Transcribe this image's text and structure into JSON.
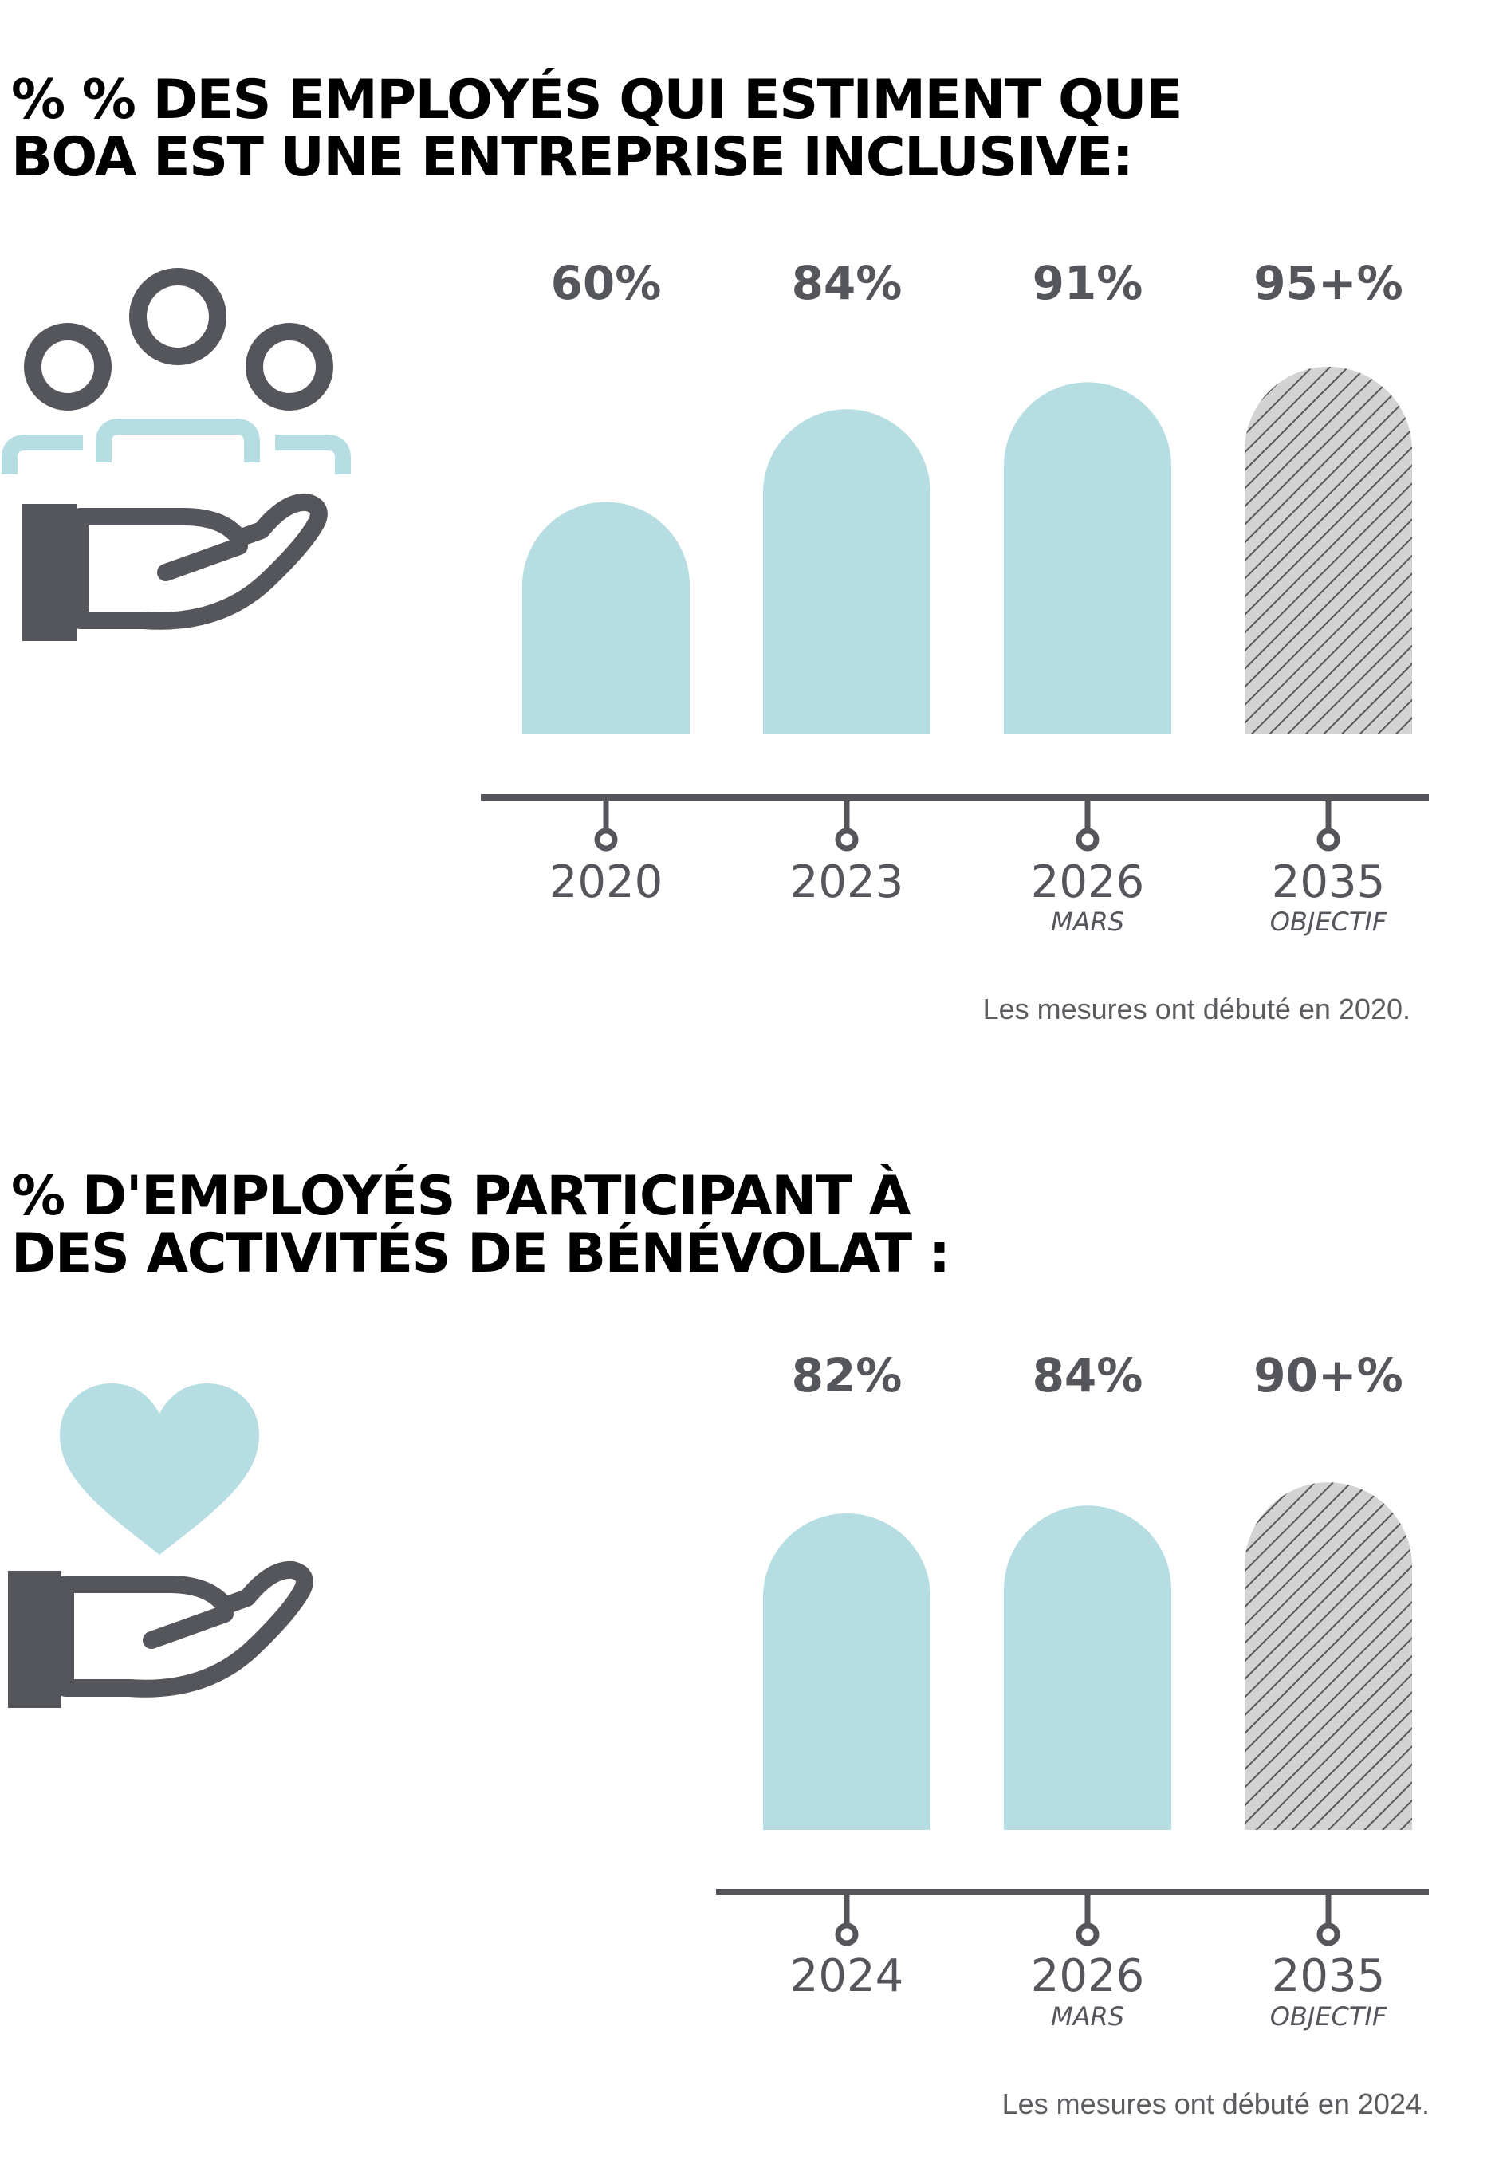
{
  "colors": {
    "bar": "#b6dde2",
    "axis": "#54565b",
    "label": "#54565b",
    "target_fill": "#d3d3d3",
    "target_hatch": "#55575b",
    "title": "#000000"
  },
  "icons": [
    "people-in-hand-icon",
    "heart-in-hand-icon"
  ],
  "chart_data": [
    {
      "type": "bar",
      "title_lines": [
        "% % DES EMPLOYÉS QUI ESTIMENT QUE",
        "BOA EST UNE ENTREPRISE INCLUSIVE:"
      ],
      "categories": [
        "2020",
        "2023",
        "2026",
        "2035"
      ],
      "sublabels": [
        "",
        "",
        "MARS",
        "OBJECTIF"
      ],
      "values": [
        60,
        84,
        91,
        95
      ],
      "value_labels": [
        "60%",
        "84%",
        "91%",
        "95+%"
      ],
      "target_index": 3,
      "note": "Les mesures ont débuté en 2020."
    },
    {
      "type": "bar",
      "title_lines": [
        "% D'EMPLOYÉS PARTICIPANT À",
        "DES ACTIVITÉS DE BÉNÉVOLAT :"
      ],
      "categories": [
        "2024",
        "2026",
        "2035"
      ],
      "sublabels": [
        "",
        "MARS",
        "OBJECTIF"
      ],
      "values": [
        82,
        84,
        90
      ],
      "value_labels": [
        "82%",
        "84%",
        "90+%"
      ],
      "target_index": 2,
      "note": "Les mesures ont débuté en 2024."
    }
  ]
}
